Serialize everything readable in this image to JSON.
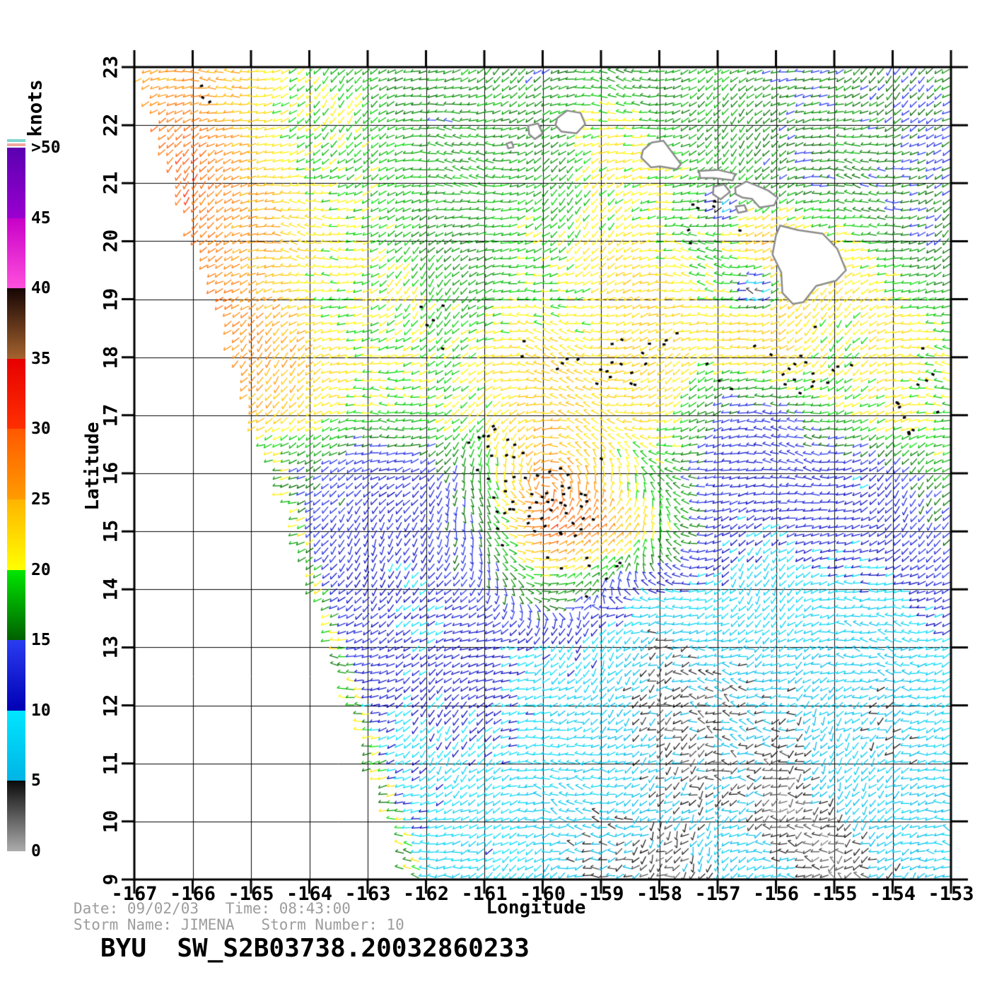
{
  "footer": {
    "date_line": "Date: 09/02/03   Time: 08:43:00",
    "storm_line": "Storm Name: JIMENA   Storm Number: 10",
    "title_line": "BYU  SW_S2B03738.20032860233",
    "date": "09/02/03",
    "time": "08:43:00",
    "storm_name": "JIMENA",
    "storm_number": "10",
    "product_id": "SW_S2B03738.20032860233",
    "source": "BYU"
  },
  "chart_data": {
    "type": "vector_field",
    "axes": {
      "x_title": "Longitude",
      "y_title": "Latitude",
      "x_ticks": [
        -167,
        -166,
        -165,
        -164,
        -163,
        -162,
        -161,
        -160,
        -159,
        -158,
        -157,
        -156,
        -155,
        -154,
        -153
      ],
      "y_ticks": [
        9,
        10,
        11,
        12,
        13,
        14,
        15,
        16,
        17,
        18,
        19,
        20,
        21,
        22,
        23
      ],
      "x_range": [
        -167,
        -153
      ],
      "y_range": [
        9,
        23
      ],
      "grid": true
    },
    "colorbar": {
      "units": "knots",
      "tick_labels": [
        ">50",
        "45",
        "40",
        "35",
        "30",
        "25",
        "20",
        "15",
        "10",
        "5",
        "0"
      ],
      "overflow_stripes": [
        "#7CD4CF",
        "#F2A6A0"
      ],
      "segments": [
        {
          "range": [
            45,
            50
          ],
          "top_color": "#5A00B0",
          "bottom_color": "#9A00D0"
        },
        {
          "range": [
            40,
            45
          ],
          "top_color": "#C800C8",
          "bottom_color": "#FF50DC"
        },
        {
          "range": [
            35,
            40
          ],
          "top_color": "#160504",
          "bottom_color": "#A5632E"
        },
        {
          "range": [
            30,
            35
          ],
          "top_color": "#E60000",
          "bottom_color": "#FF3000"
        },
        {
          "range": [
            25,
            30
          ],
          "top_color": "#FF5800",
          "bottom_color": "#FF9C00"
        },
        {
          "range": [
            20,
            25
          ],
          "top_color": "#FFB400",
          "bottom_color": "#FFFF00"
        },
        {
          "range": [
            15,
            20
          ],
          "top_color": "#00E600",
          "bottom_color": "#006000"
        },
        {
          "range": [
            10,
            15
          ],
          "top_color": "#2A3CF0",
          "bottom_color": "#0000B4"
        },
        {
          "range": [
            5,
            10
          ],
          "top_color": "#00E6FF",
          "bottom_color": "#00B4E6"
        },
        {
          "range": [
            0,
            5
          ],
          "top_color": "#0A0A0A",
          "bottom_color": "#ACACAC"
        }
      ]
    },
    "wind_speed_grid_knots": {
      "lons": [
        -167,
        -166,
        -165,
        -164,
        -163,
        -162,
        -161,
        -160,
        -159,
        -158,
        -157,
        -156,
        -155,
        -154,
        -153
      ],
      "lats": [
        23,
        22,
        21,
        20,
        19,
        18,
        17,
        16,
        15,
        14,
        13,
        12,
        11,
        10,
        9
      ],
      "values": [
        [
          26,
          27,
          22,
          19,
          18,
          17,
          17,
          16,
          17,
          17,
          17,
          16,
          16,
          16,
          16
        ],
        [
          27,
          29,
          23,
          20,
          18,
          17,
          17,
          17,
          20,
          19,
          17,
          16,
          16,
          16,
          15
        ],
        [
          28,
          30,
          24,
          21,
          19,
          18,
          17,
          18,
          21,
          20,
          18,
          17,
          16,
          15,
          15
        ],
        [
          29,
          30,
          25,
          22,
          19,
          18,
          17,
          19,
          21,
          21,
          19,
          24,
          21,
          17,
          16
        ],
        [
          30,
          30,
          26,
          22,
          20,
          19,
          18,
          20,
          22,
          22,
          21,
          24,
          22,
          20,
          18
        ],
        [
          29,
          28,
          27,
          23,
          21,
          20,
          21,
          22,
          23,
          23,
          22,
          22,
          21,
          22,
          20
        ],
        [
          27,
          27,
          26,
          22,
          19,
          18,
          22,
          24,
          22,
          21,
          15,
          13,
          19,
          21,
          19
        ],
        [
          20,
          18,
          15,
          14,
          13,
          12,
          18,
          26,
          24,
          18,
          12,
          12,
          12,
          13,
          18
        ],
        [
          16,
          15,
          14,
          13,
          12,
          12,
          16,
          30,
          27,
          20,
          13,
          11,
          11,
          12,
          14
        ],
        [
          14,
          13,
          13,
          12,
          12,
          11,
          13,
          18,
          15,
          10,
          8,
          8,
          9,
          10,
          12
        ],
        [
          13,
          13,
          12,
          12,
          12,
          11,
          12,
          10,
          8,
          5,
          7,
          8,
          5,
          8,
          9
        ],
        [
          12,
          12,
          12,
          11,
          11,
          11,
          10,
          9,
          7,
          4,
          3,
          7,
          7,
          5,
          8
        ],
        [
          11,
          11,
          11,
          11,
          10,
          10,
          9,
          8,
          7,
          6,
          4,
          3,
          7,
          7,
          8
        ],
        [
          10,
          10,
          10,
          10,
          9,
          9,
          8,
          8,
          6,
          4,
          7,
          3,
          4,
          7,
          7
        ],
        [
          9,
          9,
          9,
          9,
          9,
          8,
          8,
          7,
          5,
          3,
          6,
          7,
          3,
          6,
          7
        ]
      ]
    },
    "storm_center": {
      "lon": -160.0,
      "lat": 15.7
    },
    "swath_edge": {
      "lat9_lon": -162.35,
      "lat23_lon": -167.0
    },
    "calm_patches": [
      {
        "lon": -156.35,
        "lat": 19.15,
        "r": 0.3
      },
      {
        "lon": -156.95,
        "lat": 20.62,
        "r": 0.22
      }
    ],
    "islands_outline_color": "#8C8C8C",
    "islands": [
      {
        "name": "Niihau",
        "points": [
          [
            -160.25,
            21.99
          ],
          [
            -160.08,
            22.03
          ],
          [
            -160.0,
            21.86
          ],
          [
            -160.13,
            21.76
          ],
          [
            -160.23,
            21.84
          ]
        ]
      },
      {
        "name": "Kaula",
        "points": [
          [
            -160.62,
            21.68
          ],
          [
            -160.53,
            21.71
          ],
          [
            -160.5,
            21.62
          ],
          [
            -160.59,
            21.6
          ]
        ]
      },
      {
        "name": "Kauai",
        "points": [
          [
            -159.75,
            22.12
          ],
          [
            -159.58,
            22.25
          ],
          [
            -159.35,
            22.21
          ],
          [
            -159.27,
            22.02
          ],
          [
            -159.42,
            21.86
          ],
          [
            -159.68,
            21.89
          ],
          [
            -159.78,
            22.0
          ]
        ]
      },
      {
        "name": "Oahu",
        "points": [
          [
            -158.28,
            21.57
          ],
          [
            -158.13,
            21.7
          ],
          [
            -157.93,
            21.73
          ],
          [
            -157.63,
            21.33
          ],
          [
            -157.7,
            21.24
          ],
          [
            -157.99,
            21.29
          ],
          [
            -158.14,
            21.27
          ],
          [
            -158.31,
            21.44
          ]
        ]
      },
      {
        "name": "Molokai",
        "points": [
          [
            -157.32,
            21.21
          ],
          [
            -157.0,
            21.23
          ],
          [
            -156.7,
            21.16
          ],
          [
            -156.74,
            21.05
          ],
          [
            -157.07,
            21.09
          ],
          [
            -157.3,
            21.09
          ]
        ]
      },
      {
        "name": "Lanai",
        "points": [
          [
            -157.07,
            20.94
          ],
          [
            -156.89,
            20.98
          ],
          [
            -156.79,
            20.85
          ],
          [
            -156.95,
            20.72
          ],
          [
            -157.08,
            20.81
          ]
        ]
      },
      {
        "name": "Maui",
        "points": [
          [
            -156.7,
            20.92
          ],
          [
            -156.51,
            21.03
          ],
          [
            -156.31,
            20.95
          ],
          [
            -156.13,
            20.87
          ],
          [
            -155.97,
            20.75
          ],
          [
            -156.03,
            20.62
          ],
          [
            -156.28,
            20.58
          ],
          [
            -156.41,
            20.73
          ],
          [
            -156.57,
            20.75
          ],
          [
            -156.69,
            20.81
          ]
        ]
      },
      {
        "name": "Kahoolawe",
        "points": [
          [
            -156.69,
            20.6
          ],
          [
            -156.54,
            20.62
          ],
          [
            -156.5,
            20.52
          ],
          [
            -156.65,
            20.49
          ]
        ]
      },
      {
        "name": "Hawaii",
        "points": [
          [
            -155.93,
            20.27
          ],
          [
            -155.62,
            20.19
          ],
          [
            -155.2,
            20.13
          ],
          [
            -154.95,
            19.87
          ],
          [
            -154.8,
            19.5
          ],
          [
            -154.97,
            19.32
          ],
          [
            -155.31,
            19.23
          ],
          [
            -155.53,
            18.95
          ],
          [
            -155.71,
            18.92
          ],
          [
            -155.89,
            19.11
          ],
          [
            -155.91,
            19.46
          ],
          [
            -156.06,
            19.77
          ],
          [
            -156.0,
            20.1
          ]
        ]
      }
    ],
    "rain_flags": {
      "clusters": [
        {
          "lon": -159.9,
          "lat": 15.5,
          "slon": 0.9,
          "slat": 0.7,
          "n": 48
        },
        {
          "lon": -160.8,
          "lat": 16.4,
          "slon": 0.5,
          "slat": 0.45,
          "n": 14
        },
        {
          "lon": -158.6,
          "lat": 17.9,
          "slon": 1.5,
          "slat": 0.55,
          "n": 26
        },
        {
          "lon": -155.4,
          "lat": 17.8,
          "slon": 1.0,
          "slat": 0.6,
          "n": 18
        },
        {
          "lon": -153.7,
          "lat": 17.2,
          "slon": 0.45,
          "slat": 0.9,
          "n": 12
        },
        {
          "lon": -157.3,
          "lat": 20.35,
          "slon": 0.8,
          "slat": 0.35,
          "n": 7
        },
        {
          "lon": -159.3,
          "lat": 14.3,
          "slon": 0.8,
          "slat": 0.4,
          "n": 8
        },
        {
          "lon": -161.9,
          "lat": 18.7,
          "slon": 0.5,
          "slat": 0.5,
          "n": 5
        },
        {
          "lon": -165.8,
          "lat": 22.6,
          "slon": 0.35,
          "slat": 0.5,
          "n": 3
        }
      ]
    }
  }
}
